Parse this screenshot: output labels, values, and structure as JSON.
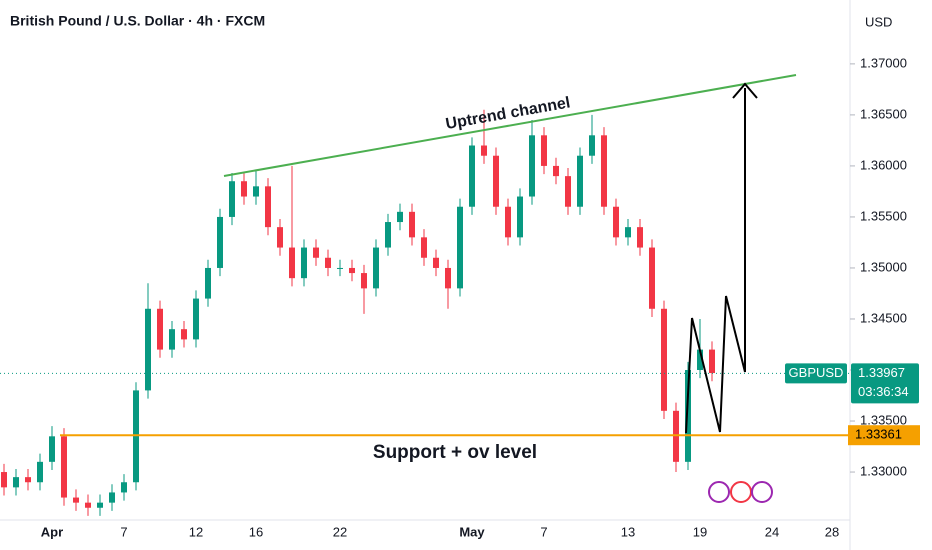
{
  "chart_data": {
    "type": "candlestick",
    "title": "British Pound / U.S. Dollar · 4h · FXCM",
    "currency": "USD",
    "symbol": "GBPUSD",
    "countdown": "03:36:34",
    "annotations": [
      "Uptrend channel",
      "Support + ov level"
    ],
    "up_color": "#089981",
    "down_color": "#f23645",
    "support_level": 1.33361,
    "support_color": "#f5a000",
    "last_price": 1.33967,
    "categories": [
      null,
      null,
      null,
      null,
      "Apr",
      null,
      null,
      null,
      null,
      null,
      "7",
      null,
      null,
      null,
      null,
      null,
      "12",
      null,
      null,
      null,
      null,
      "16",
      null,
      null,
      null,
      null,
      null,
      null,
      "22",
      null,
      null,
      null,
      null,
      null,
      null,
      null,
      null,
      null,
      null,
      "May",
      null,
      null,
      null,
      null,
      null,
      "7",
      null,
      null,
      null,
      null,
      null,
      null,
      "13",
      null,
      null,
      null,
      null,
      null,
      "19",
      null,
      null,
      null,
      null,
      null,
      "24",
      null,
      null,
      null,
      null,
      "28"
    ],
    "open": [
      1.33,
      1.3285,
      1.3295,
      1.329,
      1.331,
      1.3335,
      1.3275,
      1.327,
      1.3265,
      1.327,
      1.328,
      1.329,
      1.338,
      1.346,
      1.342,
      1.344,
      1.343,
      1.347,
      1.35,
      1.355,
      1.3585,
      1.357,
      1.358,
      1.354,
      1.352,
      1.349,
      1.352,
      1.351,
      1.35,
      1.35,
      1.3495,
      1.348,
      1.352,
      1.3545,
      1.3555,
      1.353,
      1.351,
      1.35,
      1.348,
      1.356,
      1.362,
      1.361,
      1.356,
      1.353,
      1.357,
      1.363,
      1.36,
      1.359,
      1.356,
      1.361,
      1.363,
      1.356,
      1.353,
      1.354,
      1.352,
      1.346,
      1.336,
      1.331,
      1.34,
      1.342,
      null,
      null,
      null,
      null,
      null,
      null,
      null,
      null,
      null,
      null
    ],
    "high": [
      1.3308,
      1.3303,
      1.3303,
      1.3318,
      1.3345,
      1.3343,
      1.3283,
      1.3278,
      1.3278,
      1.3288,
      1.3298,
      1.3388,
      1.3485,
      1.3468,
      1.3448,
      1.3448,
      1.3478,
      1.3508,
      1.3558,
      1.3593,
      1.3593,
      1.3595,
      1.3588,
      1.3548,
      1.36,
      1.3528,
      1.3528,
      1.3518,
      1.3508,
      1.3508,
      1.3503,
      1.3528,
      1.3553,
      1.3563,
      1.3563,
      1.3538,
      1.3518,
      1.3508,
      1.3568,
      1.3628,
      1.3655,
      1.3618,
      1.3568,
      1.3578,
      1.3645,
      1.3638,
      1.3608,
      1.3598,
      1.3618,
      1.365,
      1.3638,
      1.3568,
      1.3548,
      1.3548,
      1.3528,
      1.3468,
      1.3368,
      1.3408,
      1.345,
      1.3428,
      null,
      null,
      null,
      null,
      null,
      null,
      null,
      null,
      null,
      null
    ],
    "low": [
      1.3277,
      1.3277,
      1.3282,
      1.3282,
      1.3302,
      1.3267,
      1.3262,
      1.3257,
      1.3257,
      1.3262,
      1.3272,
      1.3282,
      1.3372,
      1.3412,
      1.3412,
      1.3422,
      1.3422,
      1.3462,
      1.3492,
      1.3542,
      1.3562,
      1.3562,
      1.3532,
      1.3512,
      1.3482,
      1.3482,
      1.3502,
      1.3492,
      1.3492,
      1.3487,
      1.3455,
      1.3472,
      1.3512,
      1.3537,
      1.3522,
      1.3502,
      1.3492,
      1.346,
      1.3472,
      1.3552,
      1.3602,
      1.3552,
      1.3522,
      1.3522,
      1.3562,
      1.3592,
      1.3582,
      1.3552,
      1.3552,
      1.3602,
      1.3552,
      1.3522,
      1.3522,
      1.3512,
      1.3452,
      1.3352,
      1.33,
      1.3302,
      1.3392,
      1.3389,
      null,
      null,
      null,
      null,
      null,
      null,
      null,
      null,
      null,
      null
    ],
    "close": [
      1.3285,
      1.3295,
      1.329,
      1.331,
      1.3335,
      1.3275,
      1.327,
      1.3265,
      1.327,
      1.328,
      1.329,
      1.338,
      1.346,
      1.342,
      1.344,
      1.343,
      1.347,
      1.35,
      1.355,
      1.3585,
      1.357,
      1.358,
      1.354,
      1.352,
      1.349,
      1.352,
      1.351,
      1.35,
      1.35,
      1.3495,
      1.348,
      1.352,
      1.3545,
      1.3555,
      1.353,
      1.351,
      1.35,
      1.348,
      1.356,
      1.362,
      1.361,
      1.356,
      1.353,
      1.357,
      1.363,
      1.36,
      1.359,
      1.356,
      1.361,
      1.363,
      1.356,
      1.353,
      1.354,
      1.352,
      1.346,
      1.336,
      1.331,
      1.34,
      1.342,
      1.3397,
      null,
      null,
      null,
      null,
      null,
      null,
      null,
      null,
      null,
      null
    ],
    "ylim": [
      1.3253,
      1.37626
    ],
    "yticks": [
      {
        "value": 1.33,
        "label": "1.33000"
      },
      {
        "value": 1.335,
        "label": "1.33500"
      },
      {
        "value": 1.34,
        "label": "1.34000"
      },
      {
        "value": 1.345,
        "label": "1.34500"
      },
      {
        "value": 1.35,
        "label": "1.35000"
      },
      {
        "value": 1.355,
        "label": "1.35500"
      },
      {
        "value": 1.36,
        "label": "1.36000"
      },
      {
        "value": 1.365,
        "label": "1.36500"
      },
      {
        "value": 1.37,
        "label": "1.37000"
      }
    ]
  }
}
